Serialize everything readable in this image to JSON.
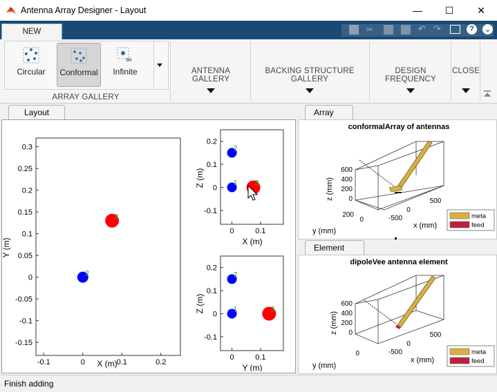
{
  "window": {
    "title": "Antenna Array Designer - Layout",
    "minimize": "—",
    "maximize": "☐",
    "close": "✕"
  },
  "ribbon": {
    "tab": "NEW",
    "gallery": {
      "label": "ARRAY GALLERY",
      "items": [
        {
          "label": "Circular",
          "selected": false
        },
        {
          "label": "Conformal",
          "selected": true
        },
        {
          "label": "Infinite",
          "selected": false
        }
      ]
    },
    "sections": [
      "ANTENNA GALLERY",
      "BACKING STRUCTURE GALLERY",
      "DESIGN FREQUENCY",
      "CLOSE"
    ]
  },
  "layout_panel": {
    "tab": "Layout",
    "xy_plot": {
      "xlabel": "X (m)",
      "ylabel": "Y (m)",
      "xticks": [
        "-0.1",
        "0",
        "0.1",
        "0.2"
      ],
      "yticks": [
        "0.3",
        "0.25",
        "0.2",
        "0.15",
        "0.1",
        "0.05",
        "0",
        "-0.05",
        "-0.1",
        "-0.15"
      ],
      "elements": [
        {
          "label": "2",
          "x": 0,
          "y": 0,
          "color": "#0000ff"
        },
        {
          "label": "3",
          "x": 0.075,
          "y": 0.13,
          "color": "#ff0000"
        }
      ]
    },
    "xz_plot": {
      "xlabel": "X (m)",
      "ylabel": "Z (m)",
      "xticks": [
        "0",
        "0.1"
      ],
      "yticks": [
        "0.2",
        "0.1",
        "0",
        "-0.1"
      ],
      "elements": [
        {
          "label": "1",
          "x": 0,
          "z": 0,
          "color": "#0000ff"
        },
        {
          "label": "2",
          "x": 0,
          "z": 0.15,
          "color": "#0000ff"
        },
        {
          "label": "3",
          "x": 0.075,
          "z": 0,
          "color": "#ff0000"
        }
      ]
    },
    "yz_plot": {
      "xlabel": "Y (m)",
      "ylabel": "Z (m)",
      "xticks": [
        "0",
        "0.1"
      ],
      "yticks": [
        "0.2",
        "0.1",
        "0",
        "-0.1"
      ],
      "elements": [
        {
          "label": "1",
          "y": 0,
          "z": 0,
          "color": "#0000ff"
        },
        {
          "label": "2",
          "y": 0,
          "z": 0.15,
          "color": "#0000ff"
        },
        {
          "label": "3",
          "y": 0.13,
          "z": 0,
          "color": "#ff0000"
        }
      ]
    }
  },
  "array_panel": {
    "tab": "Array",
    "title": "conformalArray of antennas",
    "zlabel": "z (mm)",
    "ylabel": "y (mm)",
    "xlabel": "x (mm)",
    "zticks": [
      "600",
      "400",
      "200",
      "0"
    ],
    "yticks": [
      "200",
      "0"
    ],
    "xticks": [
      "-500",
      "0",
      "500"
    ],
    "legend": [
      "meta",
      "feed"
    ]
  },
  "element_panel": {
    "tab": "Element",
    "title": "dipoleVee antenna element",
    "zlabel": "z (mm)",
    "ylabel": "y (mm)",
    "xlabel": "x (mm)",
    "zticks": [
      "600",
      "400",
      "200",
      "0"
    ],
    "yticks": [
      "0"
    ],
    "xticks": [
      "-500",
      "0",
      "500"
    ],
    "legend": [
      "meta",
      "feed"
    ]
  },
  "colors": {
    "metal": "#d9b040",
    "feed": "#c0203a",
    "blue": "#0000ff",
    "red": "#ff0000",
    "label_green": "#22aa22"
  },
  "status": "Finish adding"
}
